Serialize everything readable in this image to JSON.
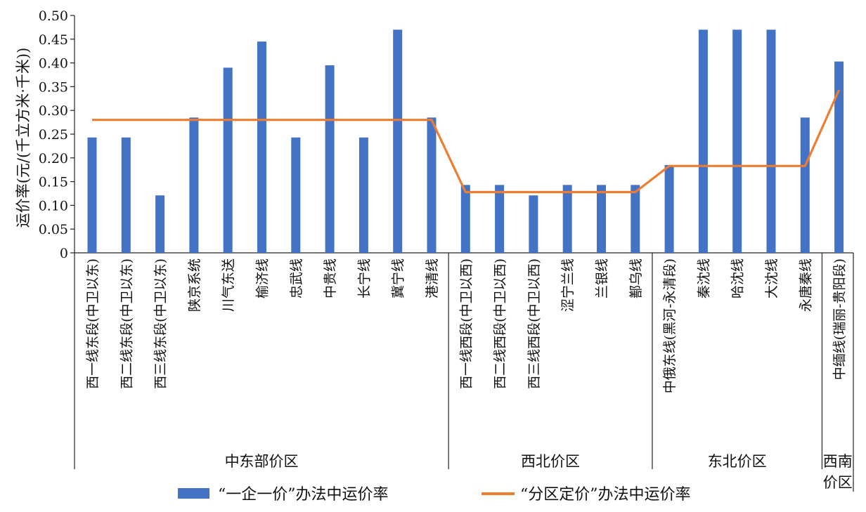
{
  "chart_data": {
    "type": "bar",
    "ylabel": "运价率(元/(千立方米·千米))",
    "ylim": [
      0,
      0.5
    ],
    "yticks": [
      "0",
      "0.05",
      "0.10",
      "0.15",
      "0.20",
      "0.25",
      "0.30",
      "0.35",
      "0.40",
      "0.45",
      "0.50"
    ],
    "grid": false,
    "legend_position": "bottom",
    "categories": [
      "西一线东段(中卫以东)",
      "西二线东段(中卫以东)",
      "西三线东段(中卫以东)",
      "陕京系统",
      "川气东送",
      "榆济线",
      "忠武线",
      "中贵线",
      "长宁线",
      "冀宁线",
      "港清线",
      "西一线西段(中卫以西)",
      "西二线西段(中卫以西)",
      "西三线西段(中卫以西)",
      "涩宁兰线",
      "兰银线",
      "鄯乌线",
      "中俄东线(黑河-永清段)",
      "秦沈线",
      "哈沈线",
      "大沈线",
      "永唐秦线",
      "中缅线(瑞丽-贵阳段)"
    ],
    "regions": [
      {
        "name": "中东部价区",
        "count": 11
      },
      {
        "name": "西北价区",
        "count": 6
      },
      {
        "name": "东北价区",
        "count": 5
      },
      {
        "name": "西南价区",
        "count": 1
      }
    ],
    "series": [
      {
        "name": "“一企一价”办法中运价率",
        "type": "bar",
        "color": "#4472c4",
        "values": [
          0.243,
          0.243,
          0.121,
          0.285,
          0.39,
          0.445,
          0.243,
          0.395,
          0.243,
          0.47,
          0.285,
          0.143,
          0.143,
          0.121,
          0.143,
          0.143,
          0.143,
          0.185,
          0.47,
          0.47,
          0.47,
          0.285,
          0.403
        ]
      },
      {
        "name": "“分区定价”办法中运价率",
        "type": "line",
        "color": "#ed7d31",
        "values": [
          0.28,
          0.28,
          0.28,
          0.28,
          0.28,
          0.28,
          0.28,
          0.28,
          0.28,
          0.28,
          0.28,
          0.128,
          0.128,
          0.128,
          0.128,
          0.128,
          0.128,
          0.183,
          0.183,
          0.183,
          0.183,
          0.183,
          0.343
        ]
      }
    ]
  }
}
